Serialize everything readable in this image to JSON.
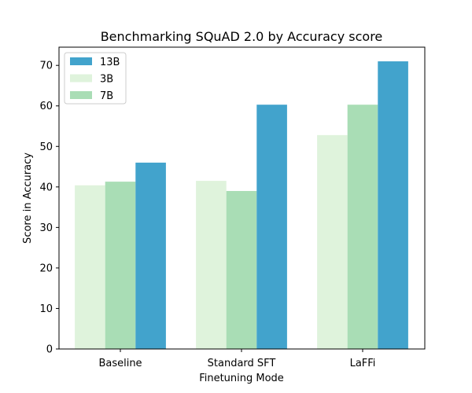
{
  "chart_data": {
    "type": "bar",
    "title": "Benchmarking SQuAD 2.0 by Accuracy score",
    "xlabel": "Finetuning Mode",
    "ylabel": "Score in Accuracy",
    "categories": [
      "Baseline",
      "Standard SFT",
      "LaFFi"
    ],
    "ylim": [
      0,
      74.5
    ],
    "yticks": [
      0,
      10,
      20,
      30,
      40,
      50,
      60,
      70
    ],
    "series": [
      {
        "name": "3B",
        "color": "#dff3dc",
        "values": [
          40.4,
          41.5,
          52.8
        ]
      },
      {
        "name": "7B",
        "color": "#a9ddb5",
        "values": [
          41.3,
          39.0,
          60.3
        ]
      },
      {
        "name": "13B",
        "color": "#42a3cc",
        "values": [
          46.0,
          60.3,
          71.0
        ]
      }
    ],
    "legend": {
      "position": "top-left",
      "order": [
        "13B",
        "3B",
        "7B"
      ]
    },
    "grid": false
  }
}
